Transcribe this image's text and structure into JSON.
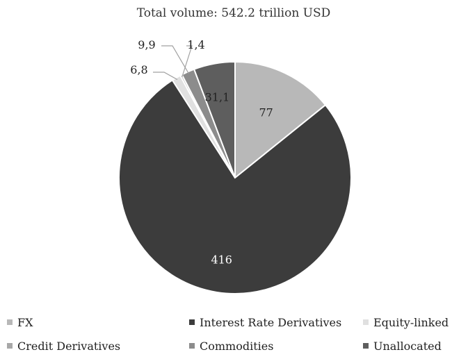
{
  "chart_data": {
    "type": "pie",
    "title": "Total volume: 542.2 trillion USD",
    "slices": [
      {
        "name": "FX",
        "value": 77,
        "label": "77",
        "color": "#b8b8b8"
      },
      {
        "name": "Interest Rate Derivatives",
        "value": 416,
        "label": "416",
        "color": "#3c3c3c"
      },
      {
        "name": "Equity-linked",
        "value": 6.8,
        "label": "6,8",
        "color": "#e0e0e0"
      },
      {
        "name": "Credit Derivatives",
        "value": 1.4,
        "label": "1,4",
        "color": "#a8a8a8"
      },
      {
        "name": "Commodities",
        "value": 9.9,
        "label": "9,9",
        "color": "#8c8c8c"
      },
      {
        "name": "Unallocated",
        "value": 31.1,
        "label": "31,1",
        "color": "#5e5e5e"
      }
    ],
    "legend_position": "bottom"
  }
}
